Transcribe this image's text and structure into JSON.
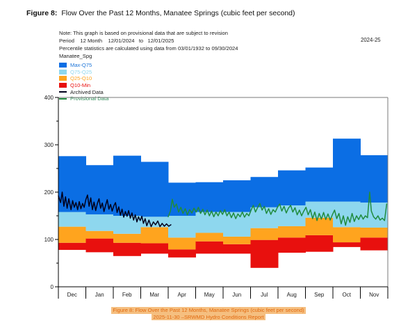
{
  "header": {
    "figure_label": "Figure 8:",
    "title": "Flow Over the Past 12 Months, Manatee Springs (cubic feet per second)",
    "note_line1": "Note: This graph is based on provisional data that are subject to revision",
    "note_line2": "Period    12 Month    12/01/2024   to   12/01/2025",
    "note_line3": "Percentile statistics are calculated using data from 03/01/1932 to 09/30/2024",
    "station": "Manatee_Spg",
    "water_year": "2024-25"
  },
  "legend": {
    "items": [
      {
        "label": "Max-Q75",
        "color": "#0b6ee4",
        "text_color": "#1b74d8",
        "type": "box"
      },
      {
        "label": "Q75-Q25",
        "color": "#8ed7ee",
        "text_color": "#8ed7ee",
        "type": "box"
      },
      {
        "label": "Q25-Q10",
        "color": "#ffa41e",
        "text_color": "#ffa41e",
        "type": "box"
      },
      {
        "label": "Q10-Min",
        "color": "#e8100e",
        "text_color": "#e8100e",
        "type": "box"
      },
      {
        "label": "Archived Data",
        "color": "#01001c",
        "text_color": "#1a1a1a",
        "type": "line"
      },
      {
        "label": "Provisional Data",
        "color": "#208b3e",
        "text_color": "#2e8b57",
        "type": "line"
      }
    ]
  },
  "footer": {
    "caption_line1": "Figure 8: Flow Over the Past 12 Months, Manatee Springs (cubic feet per second)",
    "caption_line2": "2025-11-30 –SRWMD Hydro Conditions Report",
    "highlight_bg": "#f5bf80",
    "text_color": "#e2690e"
  },
  "chart_data": {
    "type": "area",
    "title": "Flow Over the Past 12 Months, Manatee Springs (cubic feet per second)",
    "xlabel": "",
    "ylabel": "",
    "ylim": [
      0,
      400
    ],
    "yticks": [
      0,
      100,
      200,
      300,
      400
    ],
    "y_minor_step": 50,
    "grid": false,
    "legend_position": "top-left",
    "months": [
      "Dec",
      "Jan",
      "Feb",
      "Mar",
      "Apr",
      "May",
      "Jun",
      "Jul",
      "Aug",
      "Sep",
      "Oct",
      "Nov"
    ],
    "percentile_bands_cfs": {
      "note": "stacked bands per month, values approximate (cubic feet per second)",
      "min": [
        78,
        73,
        65,
        70,
        62,
        70,
        70,
        40,
        72,
        74,
        84,
        77
      ],
      "q10": [
        93,
        102,
        93,
        92,
        79,
        96,
        90,
        99,
        104,
        109,
        94,
        104
      ],
      "q25": [
        127,
        118,
        112,
        126,
        104,
        114,
        106,
        124,
        128,
        146,
        126,
        125
      ],
      "q75": [
        158,
        153,
        150,
        148,
        150,
        158,
        158,
        168,
        172,
        180,
        180,
        178
      ],
      "max": [
        276,
        257,
        277,
        264,
        220,
        221,
        225,
        232,
        246,
        252,
        313,
        278
      ]
    },
    "band_colors": {
      "max_q75": "#0b6ee4",
      "q75_q25": "#8ed7ee",
      "q25_q10": "#ffa41e",
      "q10_min": "#e8100e"
    },
    "series": [
      {
        "name": "Archived Data",
        "color": "#01001c",
        "points": [
          [
            0.0,
            192
          ],
          [
            0.08,
            178
          ],
          [
            0.14,
            200
          ],
          [
            0.2,
            170
          ],
          [
            0.26,
            190
          ],
          [
            0.32,
            166
          ],
          [
            0.38,
            186
          ],
          [
            0.46,
            163
          ],
          [
            0.52,
            182
          ],
          [
            0.58,
            168
          ],
          [
            0.64,
            178
          ],
          [
            0.7,
            163
          ],
          [
            0.76,
            180
          ],
          [
            0.82,
            165
          ],
          [
            0.88,
            176
          ],
          [
            0.94,
            168
          ],
          [
            1.0,
            184
          ],
          [
            1.06,
            194
          ],
          [
            1.12,
            170
          ],
          [
            1.18,
            188
          ],
          [
            1.24,
            163
          ],
          [
            1.3,
            179
          ],
          [
            1.36,
            161
          ],
          [
            1.42,
            176
          ],
          [
            1.48,
            186
          ],
          [
            1.54,
            166
          ],
          [
            1.6,
            177
          ],
          [
            1.66,
            159
          ],
          [
            1.72,
            172
          ],
          [
            1.78,
            184
          ],
          [
            1.84,
            164
          ],
          [
            1.9,
            174
          ],
          [
            1.96,
            160
          ],
          [
            2.02,
            171
          ],
          [
            2.08,
            178
          ],
          [
            2.14,
            157
          ],
          [
            2.2,
            169
          ],
          [
            2.26,
            151
          ],
          [
            2.32,
            164
          ],
          [
            2.38,
            147
          ],
          [
            2.44,
            159
          ],
          [
            2.5,
            149
          ],
          [
            2.56,
            161
          ],
          [
            2.62,
            145
          ],
          [
            2.68,
            156
          ],
          [
            2.74,
            141
          ],
          [
            2.8,
            152
          ],
          [
            2.86,
            137
          ],
          [
            2.92,
            148
          ],
          [
            2.98,
            140
          ],
          [
            3.04,
            149
          ],
          [
            3.1,
            134
          ],
          [
            3.16,
            144
          ],
          [
            3.22,
            129
          ],
          [
            3.3,
            141
          ],
          [
            3.38,
            127
          ],
          [
            3.46,
            137
          ],
          [
            3.54,
            131
          ],
          [
            3.62,
            139
          ],
          [
            3.7,
            127
          ],
          [
            3.78,
            134
          ],
          [
            3.86,
            128
          ],
          [
            3.94,
            133
          ],
          [
            4.02,
            128
          ],
          [
            4.1,
            131
          ]
        ]
      },
      {
        "name": "Provisional Data",
        "color": "#208b3e",
        "points": [
          [
            4.0,
            148
          ],
          [
            4.08,
            160
          ],
          [
            4.15,
            185
          ],
          [
            4.22,
            168
          ],
          [
            4.3,
            175
          ],
          [
            4.38,
            158
          ],
          [
            4.46,
            168
          ],
          [
            4.54,
            155
          ],
          [
            4.62,
            165
          ],
          [
            4.7,
            152
          ],
          [
            4.78,
            163
          ],
          [
            4.86,
            156
          ],
          [
            4.94,
            166
          ],
          [
            5.02,
            158
          ],
          [
            5.1,
            168
          ],
          [
            5.18,
            155
          ],
          [
            5.26,
            164
          ],
          [
            5.34,
            152
          ],
          [
            5.42,
            162
          ],
          [
            5.5,
            150
          ],
          [
            5.58,
            160
          ],
          [
            5.66,
            148
          ],
          [
            5.74,
            158
          ],
          [
            5.82,
            150
          ],
          [
            5.9,
            161
          ],
          [
            5.98,
            153
          ],
          [
            6.06,
            163
          ],
          [
            6.14,
            150
          ],
          [
            6.22,
            158
          ],
          [
            6.3,
            146
          ],
          [
            6.38,
            156
          ],
          [
            6.46,
            144
          ],
          [
            6.54,
            154
          ],
          [
            6.62,
            148
          ],
          [
            6.7,
            158
          ],
          [
            6.78,
            147
          ],
          [
            6.86,
            155
          ],
          [
            6.94,
            150
          ],
          [
            7.02,
            162
          ],
          [
            7.1,
            172
          ],
          [
            7.18,
            158
          ],
          [
            7.26,
            168
          ],
          [
            7.34,
            176
          ],
          [
            7.42,
            162
          ],
          [
            7.5,
            170
          ],
          [
            7.58,
            155
          ],
          [
            7.66,
            165
          ],
          [
            7.74,
            153
          ],
          [
            7.82,
            163
          ],
          [
            7.9,
            158
          ],
          [
            7.98,
            168
          ],
          [
            8.06,
            175
          ],
          [
            8.14,
            160
          ],
          [
            8.22,
            170
          ],
          [
            8.3,
            156
          ],
          [
            8.38,
            166
          ],
          [
            8.46,
            172
          ],
          [
            8.54,
            158
          ],
          [
            8.62,
            167
          ],
          [
            8.7,
            152
          ],
          [
            8.78,
            162
          ],
          [
            8.86,
            150
          ],
          [
            8.94,
            160
          ],
          [
            9.02,
            168
          ],
          [
            9.1,
            152
          ],
          [
            9.18,
            163
          ],
          [
            9.26,
            144
          ],
          [
            9.34,
            158
          ],
          [
            9.42,
            140
          ],
          [
            9.5,
            155
          ],
          [
            9.58,
            143
          ],
          [
            9.66,
            157
          ],
          [
            9.74,
            142
          ],
          [
            9.82,
            154
          ],
          [
            9.9,
            141
          ],
          [
            9.98,
            152
          ],
          [
            10.06,
            162
          ],
          [
            10.14,
            144
          ],
          [
            10.22,
            155
          ],
          [
            10.3,
            133
          ],
          [
            10.38,
            150
          ],
          [
            10.46,
            130
          ],
          [
            10.54,
            148
          ],
          [
            10.62,
            136
          ],
          [
            10.7,
            155
          ],
          [
            10.78,
            138
          ],
          [
            10.86,
            150
          ],
          [
            10.94,
            142
          ],
          [
            11.02,
            152
          ],
          [
            11.1,
            143
          ],
          [
            11.18,
            150
          ],
          [
            11.26,
            146
          ],
          [
            11.34,
            200
          ],
          [
            11.4,
            160
          ],
          [
            11.48,
            148
          ],
          [
            11.56,
            143
          ],
          [
            11.64,
            150
          ],
          [
            11.72,
            141
          ],
          [
            11.8,
            145
          ],
          [
            11.88,
            140
          ],
          [
            11.96,
            175
          ]
        ]
      }
    ]
  }
}
